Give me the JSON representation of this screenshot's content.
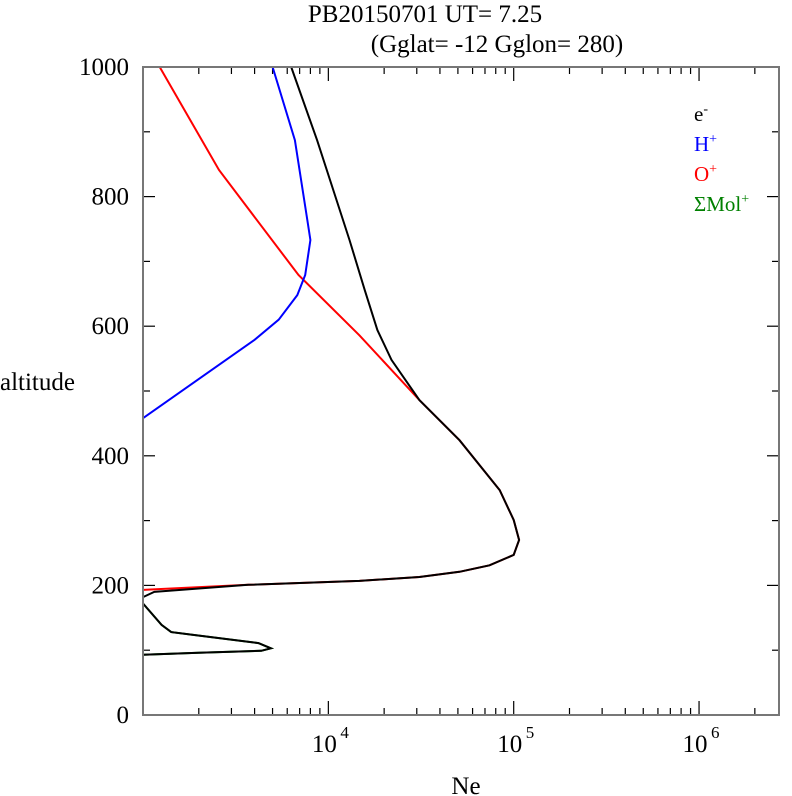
{
  "chart_data": {
    "type": "line",
    "title": "PB20150701   UT=  7.25",
    "subtitle": "(Gglat= -12   Gglon=  280)",
    "xlabel": "Ne",
    "ylabel": "altitude",
    "xscale": "log",
    "xlim": [
      1000,
      2700000
    ],
    "ylim": [
      0,
      1000
    ],
    "xticks": [
      {
        "value": 10000,
        "base": "10",
        "exp": "4"
      },
      {
        "value": 100000,
        "base": "10",
        "exp": "5"
      },
      {
        "value": 1000000,
        "base": "10",
        "exp": "6"
      }
    ],
    "yticks": [
      "0",
      "200",
      "400",
      "600",
      "800",
      "1000"
    ],
    "grid": false,
    "legend_placement": "top-right",
    "series": [
      {
        "name": "e",
        "sup": "-",
        "color": "#000000",
        "points": [
          [
            6300,
            1000
          ],
          [
            8700,
            887
          ],
          [
            13000,
            733
          ],
          [
            15700,
            656
          ],
          [
            18400,
            594
          ],
          [
            21900,
            548
          ],
          [
            31000,
            486
          ],
          [
            51000,
            424
          ],
          [
            84000,
            347
          ],
          [
            100000,
            301
          ],
          [
            107000,
            270
          ],
          [
            100000,
            247
          ],
          [
            74000,
            231
          ],
          [
            51000,
            221
          ],
          [
            31000,
            213
          ],
          [
            14700,
            207
          ],
          [
            3700,
            201
          ],
          [
            1150,
            190
          ],
          [
            1000,
            182
          ],
          null,
          [
            1000,
            172
          ],
          [
            1260,
            139
          ],
          [
            1420,
            128
          ],
          [
            4200,
            111
          ],
          [
            4900,
            103
          ],
          [
            4350,
            99
          ],
          [
            2000,
            96
          ],
          [
            1000,
            93
          ]
        ]
      },
      {
        "name": "H",
        "sup": "+",
        "color": "#0000ff",
        "points": [
          [
            5000,
            1000
          ],
          [
            6600,
            887
          ],
          [
            7700,
            764
          ],
          [
            8000,
            733
          ],
          [
            7500,
            679
          ],
          [
            6800,
            648
          ],
          [
            5400,
            610
          ],
          [
            4000,
            579
          ],
          [
            1000,
            458
          ]
        ]
      },
      {
        "name": "O",
        "sup": "+",
        "color": "#ff0000",
        "points": [
          [
            1230,
            1000
          ],
          [
            2570,
            841
          ],
          [
            6900,
            679
          ],
          [
            14700,
            586
          ],
          [
            31000,
            486
          ],
          [
            51000,
            424
          ],
          [
            84000,
            347
          ],
          [
            100000,
            301
          ],
          [
            107000,
            270
          ],
          [
            100000,
            247
          ],
          [
            74000,
            231
          ],
          [
            51000,
            221
          ],
          [
            31000,
            213
          ],
          [
            14700,
            207
          ],
          [
            3700,
            201
          ],
          [
            1000,
            193
          ]
        ]
      },
      {
        "name": "ΣMol",
        "sup": "+",
        "color": "#008000",
        "points": [
          [
            1000,
            172
          ],
          [
            1260,
            139
          ],
          [
            1420,
            128
          ],
          [
            4200,
            111
          ],
          [
            4900,
            103
          ],
          [
            4350,
            99
          ],
          [
            2000,
            96
          ],
          [
            1000,
            93
          ]
        ]
      }
    ]
  }
}
